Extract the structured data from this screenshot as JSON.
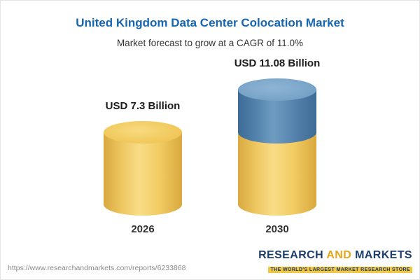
{
  "chart_data": {
    "type": "bar",
    "subtype": "3d-cylinder",
    "title": "United Kingdom Data Center Colocation Market",
    "subtitle": "Market forecast to grow at a CAGR of 11.0%",
    "categories": [
      "2026",
      "2030"
    ],
    "values": [
      7.3,
      11.08
    ],
    "value_labels": [
      "USD 7.3 Billion",
      "USD 11.08 Billion"
    ],
    "unit": "USD Billion",
    "cagr": "11.0%",
    "legend_position": "none",
    "grid": false,
    "colors": {
      "title": "#1667b2",
      "base_bar": "#f0ca60",
      "growth_segment": "#5585ae"
    },
    "notes": "2030 cylinder shows growth above the 7.3B base as a blue top segment"
  },
  "footer": {
    "url": "https://www.researchandmarkets.com/reports/6233868",
    "logo": {
      "word1": "RESEARCH",
      "word2": "AND",
      "word3": "MARKETS",
      "tagline": "THE WORLD'S LARGEST MARKET RESEARCH STORE"
    }
  }
}
